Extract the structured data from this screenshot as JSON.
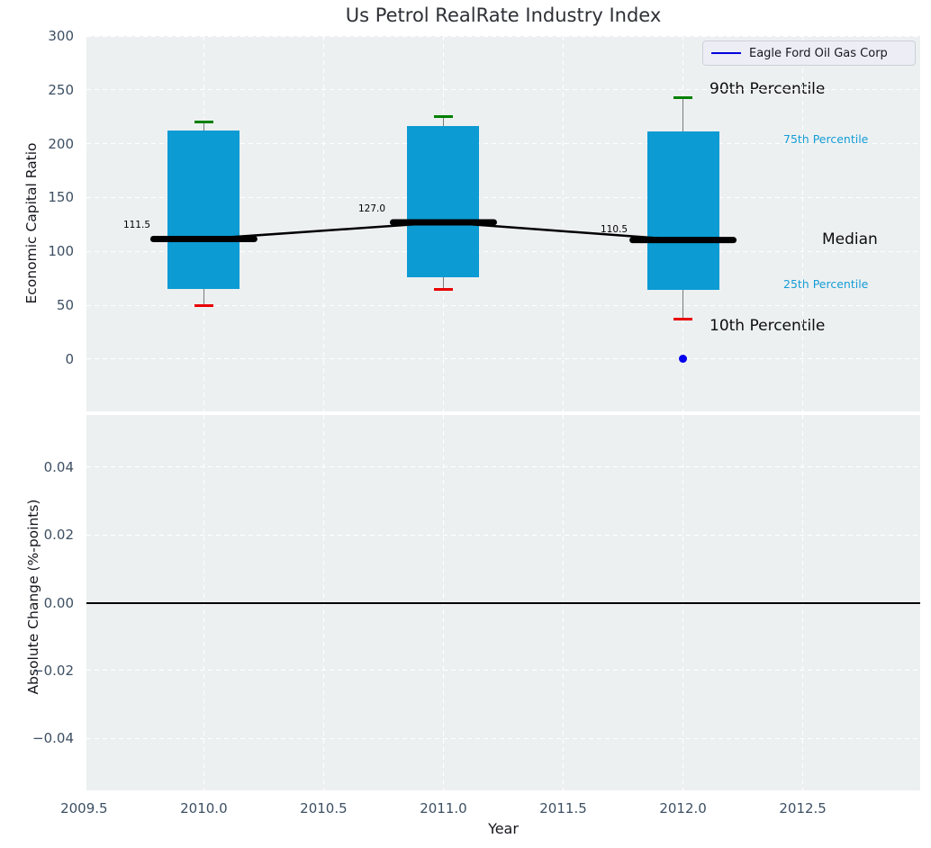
{
  "title": "Us Petrol RealRate Industry Index",
  "legend": {
    "label": "Eagle Ford Oil Gas Corp"
  },
  "axes": {
    "x": {
      "label": "Year",
      "lim": [
        2009.51,
        2012.99
      ],
      "ticks": [
        {
          "v": 2009.5,
          "label": "2009.5"
        },
        {
          "v": 2010.0,
          "label": "2010.0"
        },
        {
          "v": 2010.5,
          "label": "2010.5"
        },
        {
          "v": 2011.0,
          "label": "2011.0"
        },
        {
          "v": 2011.5,
          "label": "2011.5"
        },
        {
          "v": 2012.0,
          "label": "2012.0"
        },
        {
          "v": 2012.5,
          "label": "2012.5"
        }
      ]
    },
    "y_top": {
      "label": "Economic Capital Ratio",
      "lim": [
        -48.6,
        300
      ],
      "ticks": [
        {
          "v": 300,
          "label": "300"
        },
        {
          "v": 250,
          "label": "250"
        },
        {
          "v": 200,
          "label": "200"
        },
        {
          "v": 150,
          "label": "150"
        },
        {
          "v": 100,
          "label": "100"
        },
        {
          "v": 50,
          "label": "50"
        },
        {
          "v": 0,
          "label": "0"
        }
      ]
    },
    "y_bottom": {
      "label": "Absolute Change (%-points)",
      "lim": [
        -0.0554,
        0.0554
      ],
      "ticks": [
        {
          "v": 0.04,
          "label": "0.04"
        },
        {
          "v": 0.02,
          "label": "0.02"
        },
        {
          "v": 0.0,
          "label": "0.00"
        },
        {
          "v": -0.02,
          "label": "−0.02"
        },
        {
          "v": -0.04,
          "label": "−0.04"
        }
      ]
    }
  },
  "annotations": {
    "p90": "90th Percentile",
    "p75": "75th Percentile",
    "median": "Median",
    "p25": "25th Percentile",
    "p10": "10th Percentile"
  },
  "colors": {
    "box_fill": "#0c9bd3",
    "p90_cap": "#008000",
    "p10_cap": "#e80000",
    "whisker": "#7a7a7a",
    "median_line": "#000000",
    "company_line": "#0000dd",
    "company_dot": "#0000ee",
    "percentile_label": "#149dd6",
    "tick_label": "#3d4f63",
    "plot_bg": "#edf0f1",
    "grid": "#ffffff"
  },
  "chart_data": [
    {
      "type": "boxplot",
      "title": "Us Petrol RealRate Industry Index",
      "xlabel": "Year",
      "ylabel": "Economic Capital Ratio",
      "x": [
        2010,
        2011,
        2012
      ],
      "boxes": [
        {
          "x": 2010,
          "p10": 50,
          "p25": 65,
          "median": 111.5,
          "p75": 212,
          "p90": 220,
          "label": "111.5"
        },
        {
          "x": 2011,
          "p10": 65,
          "p25": 76,
          "median": 127.0,
          "p75": 216,
          "p90": 225,
          "label": "127.0"
        },
        {
          "x": 2012,
          "p10": 37,
          "p25": 64,
          "median": 110.5,
          "p75": 211,
          "p90": 243,
          "label": "110.5"
        }
      ],
      "median_series": {
        "x": [
          2010,
          2011,
          2012
        ],
        "y": [
          111.5,
          127.0,
          110.5
        ]
      },
      "company_series": {
        "name": "Eagle Ford Oil Gas Corp",
        "x": [
          2012
        ],
        "y": [
          0
        ]
      },
      "xlim": [
        2009.51,
        2012.99
      ],
      "ylim": [
        -48.6,
        300
      ],
      "grid": true,
      "legend_position": "upper right"
    },
    {
      "type": "line",
      "ylabel": "Absolute Change (%-points)",
      "series": [],
      "zero_line_y": 0.0,
      "ylim": [
        -0.0554,
        0.0554
      ],
      "grid": true
    }
  ]
}
